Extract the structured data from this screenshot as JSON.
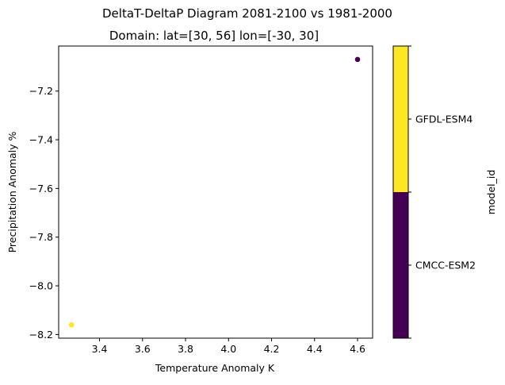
{
  "chart_data": {
    "type": "scatter",
    "suptitle": "DeltaT-DeltaP Diagram  2081-2100 vs 1981-2000",
    "title": "Domain: lat=[30, 56] lon=[-30, 30]",
    "xlabel": "Temperature Anomaly K",
    "ylabel": "Precipitation Anomaly %",
    "xlim": [
      3.21,
      4.67
    ],
    "ylim": [
      -8.215,
      -7.015
    ],
    "xticks": [
      3.4,
      3.6,
      3.8,
      4.0,
      4.2,
      4.4,
      4.6
    ],
    "xtick_labels": [
      "3.4",
      "3.6",
      "3.8",
      "4.0",
      "4.2",
      "4.4",
      "4.6"
    ],
    "yticks": [
      -7.2,
      -7.4,
      -7.6,
      -7.8,
      -8.0,
      -8.2
    ],
    "ytick_labels": [
      "−7.2",
      "−7.4",
      "−7.6",
      "−7.8",
      "−8.0",
      "−8.2"
    ],
    "grid": false,
    "points": [
      {
        "x": 3.27,
        "y": -8.16,
        "model_id": "GFDL-ESM4",
        "color": "#fde725"
      },
      {
        "x": 4.6,
        "y": -7.07,
        "model_id": "CMCC-ESM2",
        "color": "#440154"
      }
    ],
    "colorbar": {
      "label": "model_id",
      "categories": [
        {
          "name": "CMCC-ESM2",
          "color": "#440154"
        },
        {
          "name": "GFDL-ESM4",
          "color": "#fde725"
        }
      ]
    }
  }
}
